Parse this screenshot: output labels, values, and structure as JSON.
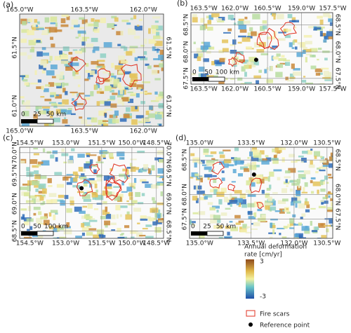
{
  "panels": [
    {
      "label": "(a)",
      "lon_ticks": [
        "165.0°W",
        "163.5°W",
        "162.0°W"
      ],
      "lat_ticks": [
        "61.5°N",
        "61.0°N"
      ],
      "scale_labels": [
        "0",
        "25",
        "50 km"
      ]
    },
    {
      "label": "(b)",
      "lon_ticks": [
        "163.5°W",
        "162.0°W",
        "160.5°W",
        "159.0°W",
        "157.5°W"
      ],
      "lat_ticks": [
        "68.5°N",
        "68.0°N",
        "67.5°N"
      ],
      "scale_labels": [
        "0",
        "50",
        "100 km"
      ]
    },
    {
      "label": "(c)",
      "lon_ticks": [
        "154.5°W",
        "153.0°W",
        "151.5°W",
        "150.0°W",
        "148.5°W"
      ],
      "lat_ticks": [
        "70.0°N",
        "69.5°N",
        "69.0°N",
        "68.5°N"
      ],
      "scale_labels": [
        "0",
        "50",
        "100 km"
      ]
    },
    {
      "label": "(d)",
      "lon_ticks": [
        "135.0°W",
        "133.5°W",
        "132.0°W",
        "130.5°W"
      ],
      "lat_ticks": [
        "68.5°N",
        "68.0°N",
        "67.5°N"
      ],
      "scale_labels": [
        "0",
        "25",
        "50 km"
      ]
    }
  ],
  "legend": {
    "title_lines": [
      "Annual deformation",
      "rate [cm/yr]"
    ],
    "colorbar_ticks": [
      3,
      -3
    ],
    "fire_scars": "Fire scars",
    "reference_point": "Reference point"
  }
}
